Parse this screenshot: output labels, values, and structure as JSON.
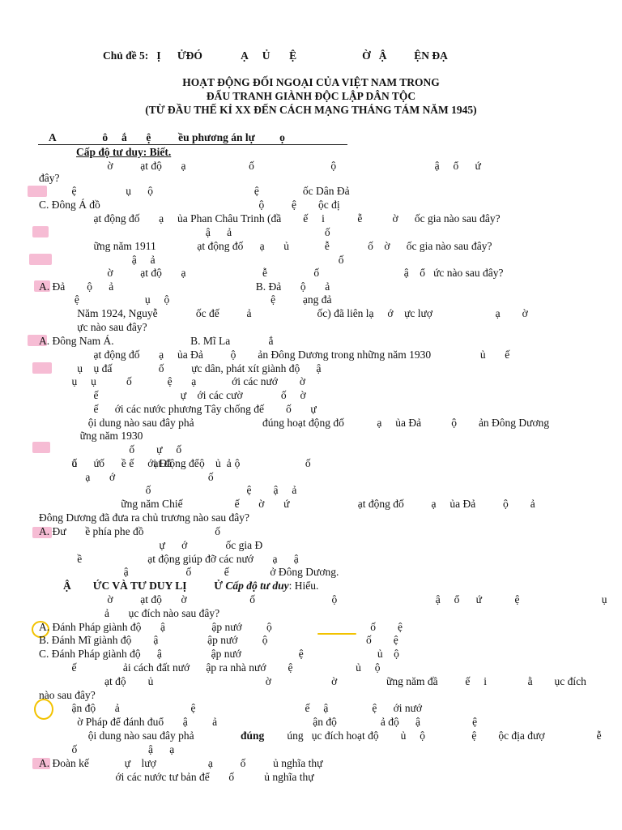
{
  "header": {
    "topic_line": "Chủ đề 5:   Ị      ỬĐÓ              Ạ     Ủ       Ệ                        Ờ   Ậ          ỆN ĐẠ",
    "title": [
      "HOẠT ĐỘNG ĐỐI NGOẠI CỦA VIỆT NAM TRONG",
      "ĐẤU TRANH GIÀNH ĐỘC LẬP DÂN TỘC",
      "(TỪ ĐẦU THẾ KỈ XX ĐẾN CÁCH MẠNG THÁNG TÁM NĂM 1945)"
    ]
  },
  "section_a": {
    "heading": "A                 ô     ắ       ệ          ều phương án lự         ọ",
    "level": "Cấp độ tư duy: Biết."
  },
  "lines": [
    "                         ờ          ạt độ       ạ                       ố                            ộ                                    ậ     ổ      ứ",
    "đây?",
    "            ệ                  ụ      ộ                                     ệ                ốc Dân Đả",
    "C. Đông Á đồ                                                          ộ          ệ        ộc đị",
    "                    ạt động đố       ạ     ủa Phan Châu Trinh (đầ        ế     i            ễ           ờ      ốc gia nào sau đây?",
    "                                                             ậ      ả                                  ố",
    "                    ững năm 1911               ạt động đố      ạ       ủ             ễ              ố    ờ      ốc gia nào sau đây?",
    "                                  ậ     ả                                                                   ố",
    "                         ờ          ạt độ       ạ                            ễ                 ố                               ậ    ổ   ức nào sau đây?",
    "A. Đả        ộ      ả                                                    B. Đả       ộ       ả",
    "             ệ                        ụ     ộ                                     ệ          ạng đả",
    "              Năm 1924, Nguyễ              ốc đế          ả                        ốc) đã liên lạ     ớ    ực lượ                       ạ        ờ",
    "              ực nào sau đây?",
    "A. Đông Nam Á.                            B. Mĩ La              ắ",
    "                    ạt động đố       ạ     ủa Đả          ộ        ản Đông Dương trong những năm 1930                  ủ       ế",
    "              ụ    ụ đấ                 ố          ực dân, phát xít giành độ      ậ",
    "            ụ     ụ           ố             ệ       ạ             ới các nướ        ờ",
    "                    ế                              ự    ới các cườ              ố     ờ",
    "                    ế      ới các nước phương Tây chống đế        ố       ự",
    "                  ội dung nào sau đây phả                         đúng hoạt động đố            ạ     ủa Đả           ộ        ản Đông Dương",
    "               ững năm 1930",
    "                                 ố        ự     ố",
    "            ủ        ố         ế     ới Đả          ộ        ả                           ố",
    "            ố      ứ        ề          ạt động để      ủ     ộ",
    "                 ạ       ớ                                  ố",
    "                                       ố                                   ệ        ậ     ả",
    "                              ững năm Chiế                   ế       ờ       ứ                         ạt động đố          ạ     ủa Đả          ộ        ả",
    "Đông Dương đã đưa ra chủ trương nào sau đây?",
    "A. Đư       ề phía phe đồ                          ố",
    "                                            ự      ớ              ốc gia Đ",
    "              ề                        ạt động giúp đỡ các nướ       ạ      ậ",
    "                               ậ                     ố            ế               ở Đông Dương."
  ],
  "section_b": {
    "heading": "Ậ        ỨC VÀ TƯ DUY LỊ          Ử",
    "level": "Cấp độ tư duy",
    "level_tail": ": Hiểu."
  },
  "lines2": [
    "                         ờ          ạt độ       ờ                       ố                            ộ                                    ậ     ổ      ứ            ệ                              ụ      ộ",
    "                        ả       ục đích nào sau đây?",
    "A. Đánh Pháp giành độ       ậ                 ập nướ         ộ                                    ố        ệ",
    "B. Đánh Mĩ giành độ        ậ                  ập nướ         ộ                                    ố        ệ",
    "C. Đánh Pháp giành độ      ậ                  ập nướ                     ệ                           ủ    ộ",
    "            ế                 ải cách đất nướ      ập ra nhà nướ        ệ                       ủ     ộ",
    "                        ạt độ        ủ                                         ờ                      ờ                  ững năm đầ          ế     i               ằ        ục đích",
    "nào sau đây?",
    "            ận độ       ả                          ệ                                        ế     ậ                ệ      ới nướ",
    "              ờ Pháp để đánh đuổ       ậ         ả                                   ận độ                ả độ      ậ                   ệ",
    "                  ội dung nào sau đây phả                                  úng   ục đích hoạt độ        ủ     ộ                 ệ        ộc địa đượ                   ễ",
    "            ố                          ậ      ạ",
    "A. Đoàn kế             ự    lượ                   ạ          ố          ủ nghĩa thự",
    "                            ới các nước tư bản để       ố           ủ nghĩa thự"
  ],
  "bold_word": "đúng"
}
